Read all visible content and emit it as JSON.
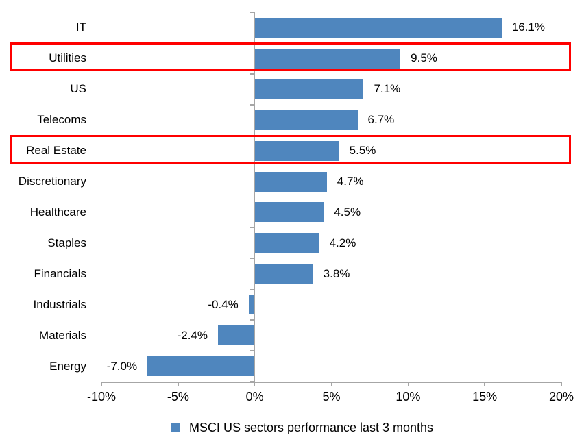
{
  "chart_data": {
    "type": "bar",
    "orientation": "horizontal",
    "title": "",
    "categories": [
      "IT",
      "Utilities",
      "US",
      "Telecoms",
      "Real Estate",
      "Discretionary",
      "Healthcare",
      "Staples",
      "Financials",
      "Industrials",
      "Materials",
      "Energy"
    ],
    "values": [
      16.1,
      9.5,
      7.1,
      6.7,
      5.5,
      4.7,
      4.5,
      4.2,
      3.8,
      -0.4,
      -2.4,
      -7.0
    ],
    "value_labels": [
      "16.1%",
      "9.5%",
      "7.1%",
      "6.7%",
      "5.5%",
      "4.7%",
      "4.5%",
      "4.2%",
      "3.8%",
      "-0.4%",
      "-2.4%",
      "-7.0%"
    ],
    "xlabel": "",
    "ylabel": "",
    "xlim": [
      -10,
      20
    ],
    "grid": false,
    "x_ticks": [
      {
        "value": -10,
        "label": "-10%"
      },
      {
        "value": -5,
        "label": "-5%"
      },
      {
        "value": 0,
        "label": "0%"
      },
      {
        "value": 5,
        "label": "5%"
      },
      {
        "value": 10,
        "label": "10%"
      },
      {
        "value": 15,
        "label": "15%"
      },
      {
        "value": 20,
        "label": "20%"
      }
    ],
    "highlighted_categories": [
      "Utilities",
      "Real Estate"
    ],
    "legend": {
      "position": "bottom",
      "label": "MSCI US sectors performance last 3 months"
    },
    "colors": {
      "bar": "#4f86be",
      "highlight_border": "#ff0000",
      "axis": "#a6a6a6",
      "text": "#000000"
    }
  }
}
